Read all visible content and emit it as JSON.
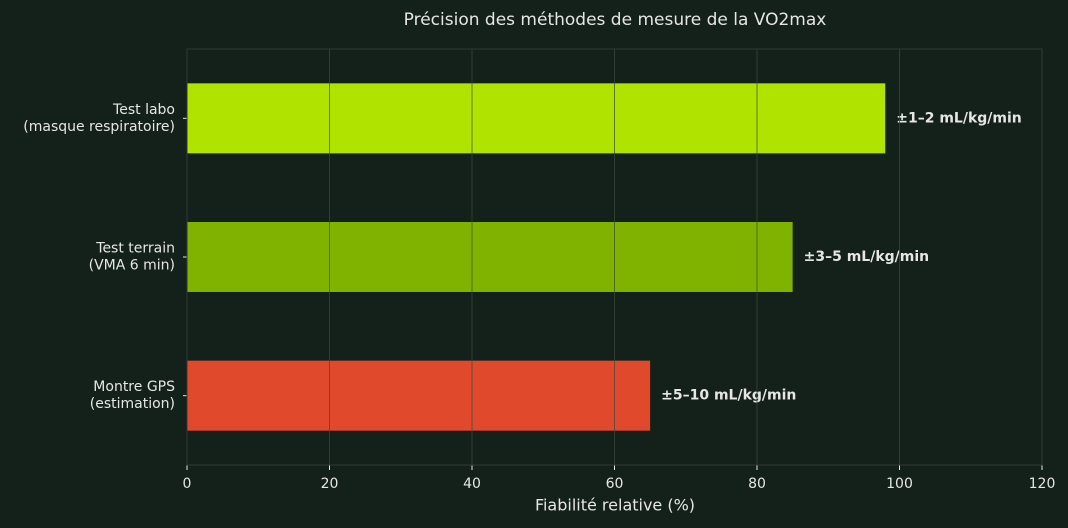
{
  "chart_data": {
    "type": "barh",
    "title": "Précision des méthodes de mesure de la VO2max",
    "xlabel": "Fiabilité relative (%)",
    "categories": [
      [
        "Test labo",
        "(masque respiratoire)"
      ],
      [
        "Test terrain",
        "(VMA 6 min)"
      ],
      [
        "Montre GPS",
        "(estimation)"
      ]
    ],
    "values": [
      98,
      85,
      65
    ],
    "colors": [
      "#b0e400",
      "#7fb300",
      "#e0492c"
    ],
    "annotations": [
      "±1–2 mL/kg/min",
      "±3–5 mL/kg/min",
      "±5–10 mL/kg/min"
    ],
    "xlim": [
      0,
      120
    ],
    "xticks": [
      0,
      20,
      40,
      60,
      80,
      100,
      120
    ],
    "grid": true
  }
}
